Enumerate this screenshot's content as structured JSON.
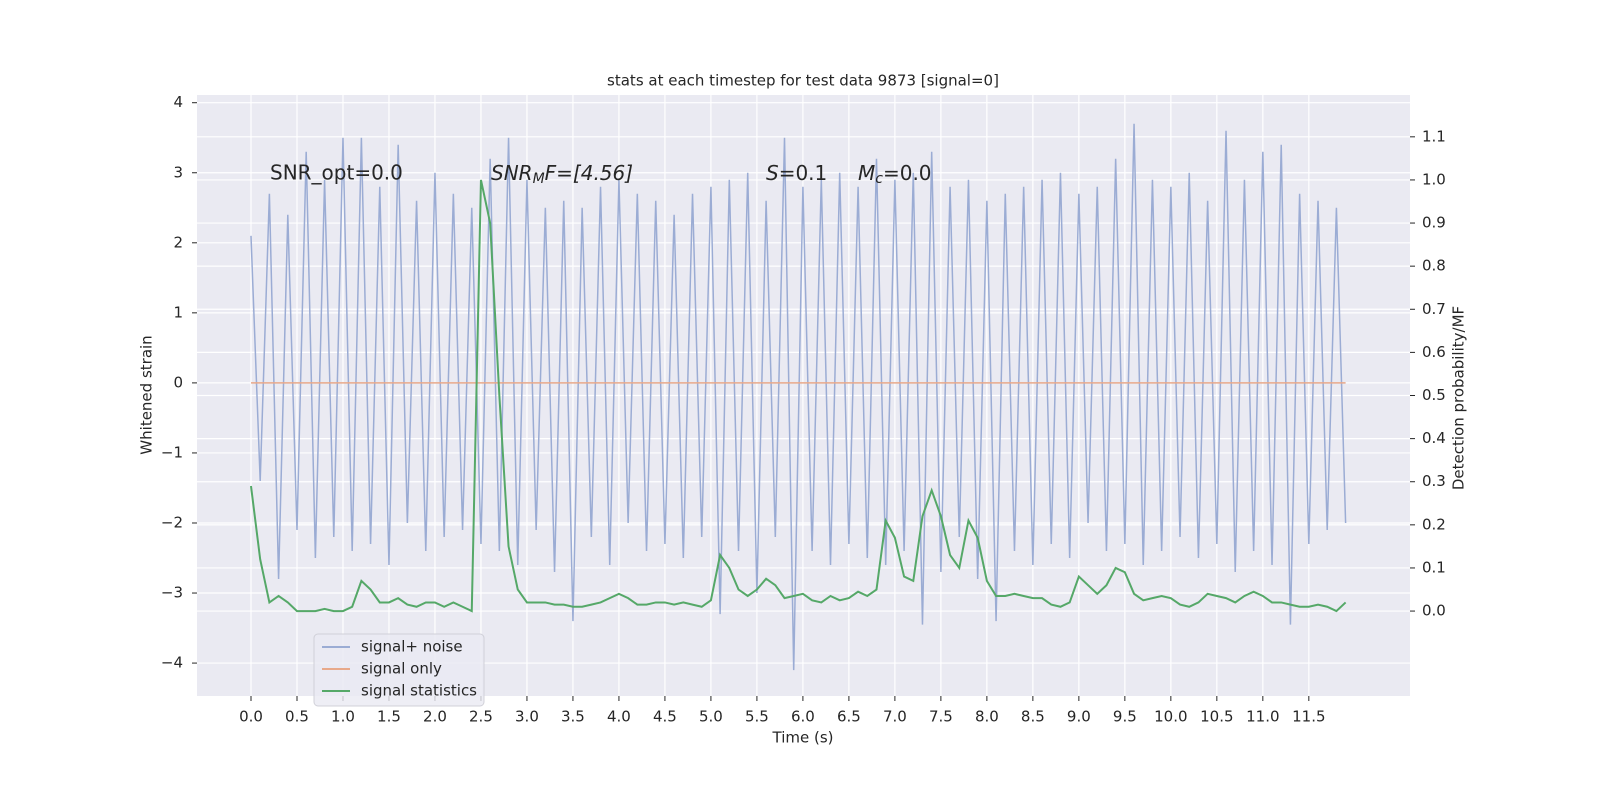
{
  "chart_data": {
    "type": "line",
    "title": "stats at each timestep for test data 9873 [signal=0]",
    "xlabel": "Time (s)",
    "ylabel": "Whitened strain",
    "y2label": "Detection probability/MF",
    "annotations": {
      "snr_opt": "SNR_opt=0.0",
      "snr_mf": [
        "SNR",
        "M",
        "F=[4.56]"
      ],
      "s": [
        "S",
        "=0.1"
      ],
      "mc": [
        "M",
        "c",
        "=0.0"
      ]
    },
    "grid": true,
    "legend": "lower left",
    "xlim": [
      -0.587,
      12.6
    ],
    "ylim": [
      -4.47,
      4.11
    ],
    "y2lim": [
      -0.197,
      1.197
    ],
    "xticks": [
      {
        "value": 0,
        "label": "0.0"
      },
      0.5,
      {
        "value": 1,
        "label": "1.0"
      },
      1.5,
      {
        "value": 2,
        "label": "2.0"
      },
      2.5,
      {
        "value": 3,
        "label": "3.0"
      },
      3.5,
      {
        "value": 4,
        "label": "4.0"
      },
      4.5,
      {
        "value": 5,
        "label": "5.0"
      },
      5.5,
      {
        "value": 6,
        "label": "6.0"
      },
      6.5,
      {
        "value": 7,
        "label": "7.0"
      },
      7.5,
      {
        "value": 8,
        "label": "8.0"
      },
      8.5,
      {
        "value": 9,
        "label": "9.0"
      },
      9.5,
      {
        "value": 10,
        "label": "10.0"
      },
      10.5,
      {
        "value": 11,
        "label": "11.0"
      },
      11.5
    ],
    "yticks": [
      {
        "value": -4,
        "label": "−4"
      },
      {
        "value": -3,
        "label": "−3"
      },
      {
        "value": -2,
        "label": "−2"
      },
      {
        "value": -1,
        "label": "−1"
      },
      0,
      1,
      2,
      3,
      4
    ],
    "y2ticks": [
      {
        "value": 0,
        "label": "0.0"
      },
      0.1,
      0.2,
      0.3,
      0.4,
      0.5,
      0.6,
      0.7,
      0.8,
      0.9,
      {
        "value": 1,
        "label": "1.0"
      },
      1.1
    ],
    "x": [
      0,
      0.1,
      0.2,
      0.3,
      0.4,
      0.5,
      0.6,
      0.7,
      0.8,
      0.9,
      1,
      1.1,
      1.2,
      1.3,
      1.4,
      1.5,
      1.6,
      1.7,
      1.8,
      1.9,
      2,
      2.1,
      2.2,
      2.3,
      2.4,
      2.5,
      2.6,
      2.7,
      2.8,
      2.9,
      3,
      3.1,
      3.2,
      3.3,
      3.4,
      3.5,
      3.6,
      3.7,
      3.8,
      3.9,
      4,
      4.1,
      4.2,
      4.3,
      4.4,
      4.5,
      4.6,
      4.7,
      4.8,
      4.9,
      5,
      5.1,
      5.2,
      5.3,
      5.4,
      5.5,
      5.6,
      5.7,
      5.8,
      5.9,
      6,
      6.1,
      6.2,
      6.3,
      6.4,
      6.5,
      6.6,
      6.7,
      6.8,
      6.9,
      7,
      7.1,
      7.2,
      7.3,
      7.4,
      7.5,
      7.6,
      7.7,
      7.8,
      7.9,
      8,
      8.1,
      8.2,
      8.3,
      8.4,
      8.5,
      8.6,
      8.7,
      8.8,
      8.9,
      9,
      9.1,
      9.2,
      9.3,
      9.4,
      9.5,
      9.6,
      9.7,
      9.8,
      9.9,
      10,
      10.1,
      10.2,
      10.3,
      10.4,
      10.5,
      10.6,
      10.7,
      10.8,
      10.9,
      11,
      11.1,
      11.2,
      11.3,
      11.4,
      11.5,
      11.6,
      11.7,
      11.8,
      11.9
    ],
    "series": [
      {
        "name": "signal+ noise",
        "color": "#9bacd4",
        "values": [
          2.1,
          -1.4,
          2.7,
          -2.8,
          2.4,
          -2.1,
          3.3,
          -2.5,
          2.9,
          -2.2,
          3.5,
          -2.4,
          3.5,
          -2.3,
          2.8,
          -2.6,
          3.4,
          -2.0,
          2.6,
          -2.4,
          3.0,
          -2.2,
          2.7,
          -2.1,
          2.5,
          -2.3,
          3.2,
          -2.4,
          3.5,
          -2.6,
          2.9,
          -2.1,
          2.5,
          -2.7,
          2.6,
          -3.4,
          2.5,
          -2.2,
          2.8,
          -2.6,
          2.9,
          -2.0,
          2.7,
          -2.4,
          2.6,
          -2.3,
          2.4,
          -2.5,
          2.7,
          -2.2,
          2.8,
          -3.3,
          2.9,
          -2.4,
          3.0,
          -3.0,
          2.6,
          -2.2,
          3.5,
          -4.1,
          2.8,
          -2.4,
          2.9,
          -2.6,
          3.0,
          -2.3,
          2.8,
          -2.5,
          3.2,
          -2.6,
          2.9,
          -2.4,
          3.0,
          -3.45,
          3.3,
          -2.7,
          2.8,
          -2.2,
          2.9,
          -2.8,
          2.6,
          -3.4,
          2.7,
          -2.4,
          2.8,
          -2.6,
          2.9,
          -2.3,
          3.0,
          -2.5,
          2.7,
          -2.0,
          2.8,
          -2.4,
          3.2,
          -2.3,
          3.7,
          -2.6,
          2.9,
          -2.4,
          2.8,
          -2.2,
          3.0,
          -2.5,
          2.6,
          -2.3,
          3.6,
          -2.7,
          2.9,
          -2.4,
          3.3,
          -2.6,
          3.4,
          -3.45,
          2.7,
          -2.3,
          2.6,
          -2.1,
          2.5,
          -2.0
        ]
      },
      {
        "name": "signal only",
        "color": "#e8a98a",
        "values": [
          0,
          0,
          0,
          0,
          0,
          0,
          0,
          0,
          0,
          0,
          0,
          0,
          0,
          0,
          0,
          0,
          0,
          0,
          0,
          0,
          0,
          0,
          0,
          0,
          0,
          0,
          0,
          0,
          0,
          0,
          0,
          0,
          0,
          0,
          0,
          0,
          0,
          0,
          0,
          0,
          0,
          0,
          0,
          0,
          0,
          0,
          0,
          0,
          0,
          0,
          0,
          0,
          0,
          0,
          0,
          0,
          0,
          0,
          0,
          0,
          0,
          0,
          0,
          0,
          0,
          0,
          0,
          0,
          0,
          0,
          0,
          0,
          0,
          0,
          0,
          0,
          0,
          0,
          0,
          0,
          0,
          0,
          0,
          0,
          0,
          0,
          0,
          0,
          0,
          0,
          0,
          0,
          0,
          0,
          0,
          0,
          0,
          0,
          0,
          0,
          0,
          0,
          0,
          0,
          0,
          0,
          0,
          0,
          0,
          0,
          0,
          0,
          0,
          0,
          0,
          0,
          0,
          0,
          0,
          0
        ]
      },
      {
        "name": "signal statistics",
        "color": "#55a868",
        "axis": "y2",
        "values": [
          0.29,
          0.12,
          0.02,
          0.035,
          0.02,
          0,
          0,
          0,
          0.005,
          0,
          0,
          0.01,
          0.07,
          0.05,
          0.02,
          0.02,
          0.03,
          0.015,
          0.01,
          0.02,
          0.02,
          0.01,
          0.02,
          0.01,
          0,
          1.0,
          0.9,
          0.5,
          0.15,
          0.05,
          0.02,
          0.02,
          0.02,
          0.015,
          0.015,
          0.01,
          0.01,
          0.015,
          0.02,
          0.03,
          0.04,
          0.03,
          0.015,
          0.015,
          0.02,
          0.02,
          0.015,
          0.02,
          0.015,
          0.01,
          0.025,
          0.13,
          0.1,
          0.05,
          0.035,
          0.05,
          0.075,
          0.06,
          0.03,
          0.035,
          0.04,
          0.025,
          0.02,
          0.035,
          0.025,
          0.03,
          0.045,
          0.035,
          0.05,
          0.21,
          0.17,
          0.08,
          0.07,
          0.22,
          0.28,
          0.22,
          0.13,
          0.1,
          0.21,
          0.17,
          0.07,
          0.035,
          0.035,
          0.04,
          0.035,
          0.03,
          0.03,
          0.015,
          0.01,
          0.02,
          0.08,
          0.06,
          0.04,
          0.06,
          0.1,
          0.09,
          0.04,
          0.025,
          0.03,
          0.035,
          0.03,
          0.015,
          0.01,
          0.02,
          0.04,
          0.035,
          0.03,
          0.02,
          0.035,
          0.045,
          0.035,
          0.02,
          0.02,
          0.015,
          0.01,
          0.01,
          0.015,
          0.01,
          0,
          0.02
        ]
      }
    ]
  }
}
